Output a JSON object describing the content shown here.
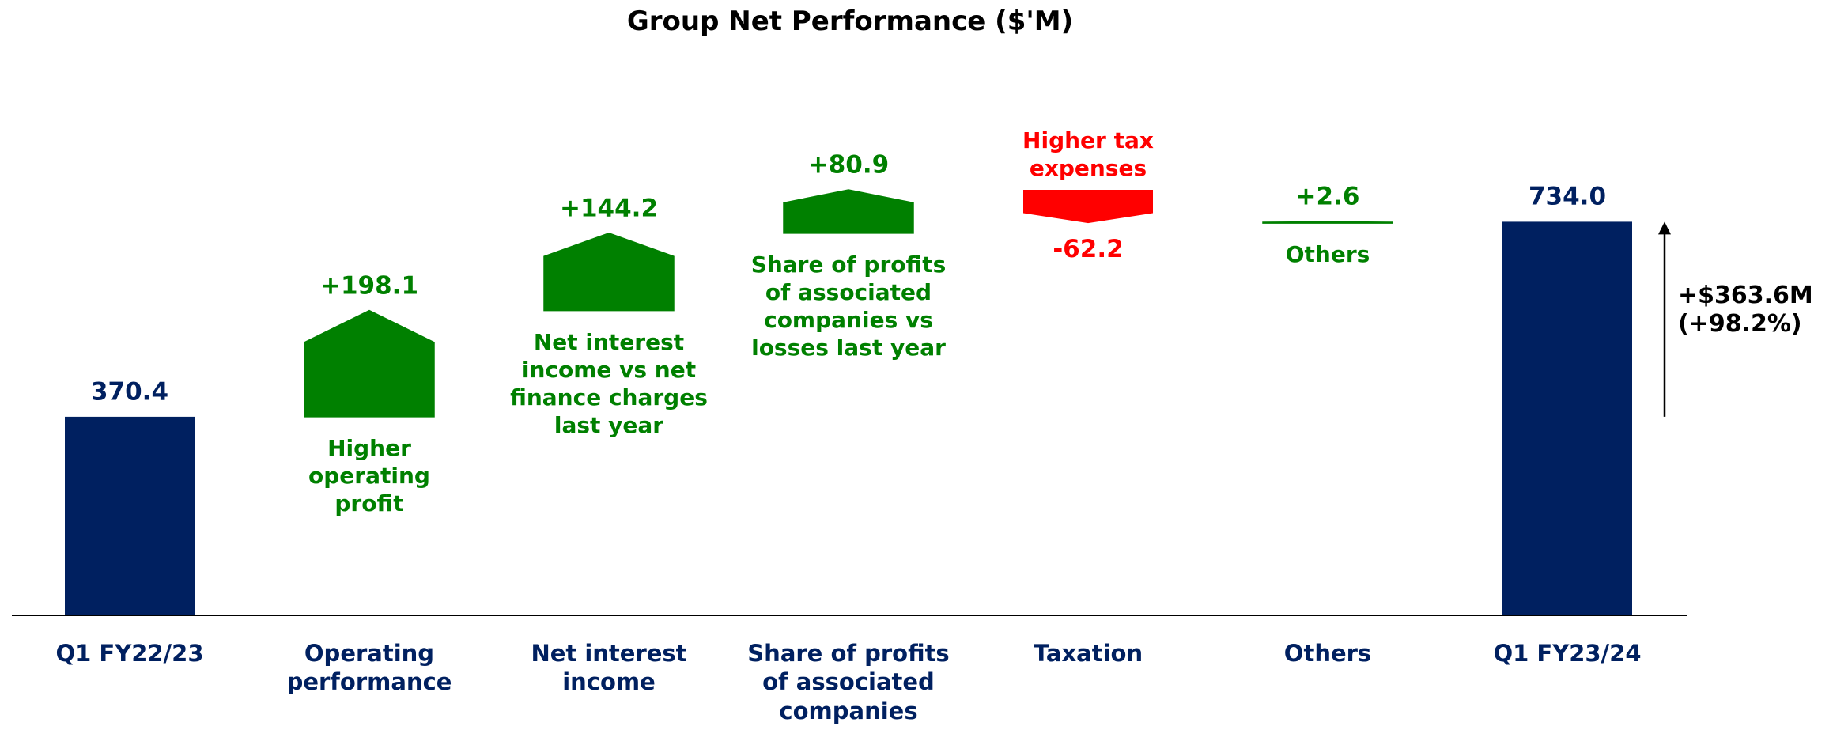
{
  "chart_data": {
    "type": "waterfall",
    "title": "Group Net Performance ($'M)",
    "categories": [
      "Q1 FY22/23",
      "Operating performance",
      "Net interest income",
      "Share of profits of associated companies",
      "Taxation",
      "Others",
      "Q1 FY23/24"
    ],
    "measure": [
      "absolute",
      "relative",
      "relative",
      "relative",
      "relative",
      "relative",
      "absolute"
    ],
    "values": [
      370.4,
      198.1,
      144.2,
      80.9,
      -62.2,
      2.6,
      734.0
    ],
    "value_labels": [
      "370.4",
      "+198.1",
      "+144.2",
      "+80.9",
      "-62.2",
      "+2.6",
      "734.0"
    ],
    "annotations": [
      null,
      "Higher operating profit",
      "Net interest income vs net finance charges last year",
      "Share of profits of associated companies vs losses last year",
      "Higher tax expenses",
      "Others",
      null
    ],
    "side_annotation": [
      "+$363.6M",
      "(+98.2%)"
    ],
    "colors": {
      "total": "#002060",
      "increase": "#008000",
      "decrease": "#ff0000"
    }
  }
}
